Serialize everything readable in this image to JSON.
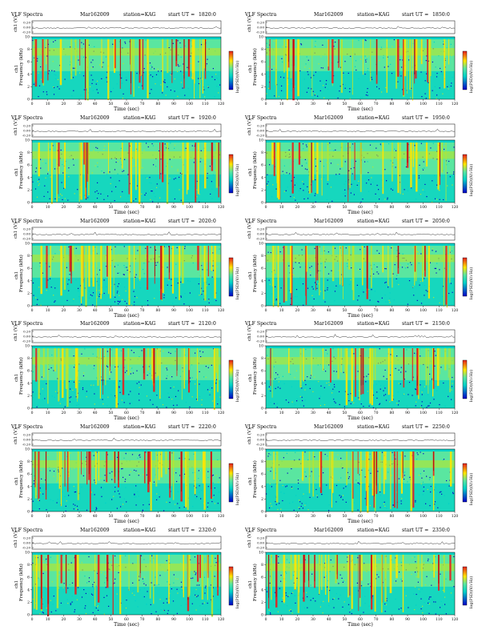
{
  "panel_header": {
    "title": "VLF Spectra",
    "date": "Mar162009",
    "station": "station=KAG",
    "start_prefix": "start UT ="
  },
  "labels": {
    "channel_axis": "ch1 (V)",
    "channel_name": "ch1",
    "frequency_axis": "Frequency (kHz)",
    "time_axis": "Time (sec)",
    "colorbar_axis": "log(PSD)(V/√Hz)"
  },
  "colors": {
    "low": "#0000c8",
    "mid": "#00d2c8",
    "background": "#5ae6a0",
    "high_green": "#b4e632",
    "yellow": "#ffe600",
    "red": "#e61e1e",
    "darkred": "#960000"
  },
  "chart_data": [
    {
      "type": "heatmap",
      "start_ut": "1820:0",
      "xlabel": "Time (sec)",
      "ylabel": "Frequency (kHz)",
      "xlim": [
        0,
        120
      ],
      "ylim": [
        0,
        10
      ],
      "x_ticks": [
        "0",
        "10",
        "20",
        "30",
        "40",
        "50",
        "60",
        "70",
        "80",
        "90",
        "100",
        "110",
        "120"
      ],
      "y_ticks": [
        "0",
        "2",
        "4",
        "6",
        "8",
        "10"
      ],
      "channel_ticks": [
        "0.20",
        "0.00",
        "-0.20"
      ]
    },
    {
      "type": "heatmap",
      "start_ut": "1850:0",
      "xlabel": "Time (sec)",
      "ylabel": "Frequency (kHz)",
      "xlim": [
        0,
        120
      ],
      "ylim": [
        0,
        10
      ],
      "x_ticks": [
        "0",
        "10",
        "20",
        "30",
        "40",
        "50",
        "60",
        "70",
        "80",
        "90",
        "100",
        "110",
        "120"
      ],
      "y_ticks": [
        "0",
        "2",
        "4",
        "6",
        "8",
        "10"
      ],
      "channel_ticks": [
        "0.20",
        "0.00",
        "-0.20"
      ]
    },
    {
      "type": "heatmap",
      "start_ut": "1920:0",
      "xlabel": "Time (sec)",
      "ylabel": "Frequency (kHz)",
      "xlim": [
        0,
        120
      ],
      "ylim": [
        0,
        10
      ],
      "x_ticks": [
        "0",
        "10",
        "20",
        "30",
        "40",
        "50",
        "60",
        "70",
        "80",
        "90",
        "100",
        "110",
        "120"
      ],
      "y_ticks": [
        "0",
        "2",
        "4",
        "6",
        "8",
        "10"
      ],
      "channel_ticks": [
        "0.20",
        "0.00",
        "-0.20"
      ]
    },
    {
      "type": "heatmap",
      "start_ut": "1950:0",
      "xlabel": "Time (sec)",
      "ylabel": "Frequency (kHz)",
      "xlim": [
        0,
        120
      ],
      "ylim": [
        0,
        10
      ],
      "x_ticks": [
        "0",
        "10",
        "20",
        "30",
        "40",
        "50",
        "60",
        "70",
        "80",
        "90",
        "100",
        "110",
        "120"
      ],
      "y_ticks": [
        "0",
        "2",
        "4",
        "6",
        "8",
        "10"
      ],
      "channel_ticks": [
        "0.20",
        "0.00",
        "-0.20"
      ]
    },
    {
      "type": "heatmap",
      "start_ut": "2020:0",
      "xlabel": "Time (sec)",
      "ylabel": "Frequency (kHz)",
      "xlim": [
        0,
        120
      ],
      "ylim": [
        0,
        10
      ],
      "x_ticks": [
        "0",
        "10",
        "20",
        "30",
        "40",
        "50",
        "60",
        "70",
        "80",
        "90",
        "100",
        "110",
        "120"
      ],
      "y_ticks": [
        "0",
        "2",
        "4",
        "6",
        "8",
        "10"
      ],
      "channel_ticks": [
        "0.20",
        "0.00",
        "-0.20"
      ]
    },
    {
      "type": "heatmap",
      "start_ut": "2050:0",
      "xlabel": "Time (sec)",
      "ylabel": "Frequency (kHz)",
      "xlim": [
        0,
        120
      ],
      "ylim": [
        0,
        10
      ],
      "x_ticks": [
        "0",
        "10",
        "20",
        "30",
        "40",
        "50",
        "60",
        "70",
        "80",
        "90",
        "100",
        "110",
        "120"
      ],
      "y_ticks": [
        "0",
        "2",
        "4",
        "6",
        "8",
        "10"
      ],
      "channel_ticks": [
        "0.20",
        "0.00",
        "-0.20"
      ]
    },
    {
      "type": "heatmap",
      "start_ut": "2120:0",
      "xlabel": "Time (sec)",
      "ylabel": "Frequency (kHz)",
      "xlim": [
        0,
        120
      ],
      "ylim": [
        0,
        10
      ],
      "x_ticks": [
        "0",
        "10",
        "20",
        "30",
        "40",
        "50",
        "60",
        "70",
        "80",
        "90",
        "100",
        "110",
        "120"
      ],
      "y_ticks": [
        "0",
        "2",
        "4",
        "6",
        "8",
        "10"
      ],
      "channel_ticks": [
        "0.20",
        "0.00",
        "-0.20"
      ]
    },
    {
      "type": "heatmap",
      "start_ut": "2150:0",
      "xlabel": "Time (sec)",
      "ylabel": "Frequency (kHz)",
      "xlim": [
        0,
        120
      ],
      "ylim": [
        0,
        10
      ],
      "x_ticks": [
        "0",
        "10",
        "20",
        "30",
        "40",
        "50",
        "60",
        "70",
        "80",
        "90",
        "100",
        "110",
        "120"
      ],
      "y_ticks": [
        "0",
        "2",
        "4",
        "6",
        "8",
        "10"
      ],
      "channel_ticks": [
        "0.20",
        "0.00",
        "-0.20"
      ]
    },
    {
      "type": "heatmap",
      "start_ut": "2220:0",
      "xlabel": "Time (sec)",
      "ylabel": "Frequency (kHz)",
      "xlim": [
        0,
        120
      ],
      "ylim": [
        0,
        10
      ],
      "x_ticks": [
        "0",
        "10",
        "20",
        "30",
        "40",
        "50",
        "60",
        "70",
        "80",
        "90",
        "100",
        "110",
        "120"
      ],
      "y_ticks": [
        "0",
        "2",
        "4",
        "6",
        "8",
        "10"
      ],
      "channel_ticks": [
        "0.20",
        "0.00",
        "-0.20"
      ]
    },
    {
      "type": "heatmap",
      "start_ut": "2250:0",
      "xlabel": "Time (sec)",
      "ylabel": "Frequency (kHz)",
      "xlim": [
        0,
        120
      ],
      "ylim": [
        0,
        10
      ],
      "x_ticks": [
        "0",
        "10",
        "20",
        "30",
        "40",
        "50",
        "60",
        "70",
        "80",
        "90",
        "100",
        "110",
        "120"
      ],
      "y_ticks": [
        "0",
        "2",
        "4",
        "6",
        "8",
        "10"
      ],
      "channel_ticks": [
        "0.20",
        "0.00",
        "-0.20"
      ]
    },
    {
      "type": "heatmap",
      "start_ut": "2320:0",
      "xlabel": "Time (sec)",
      "ylabel": "Frequency (kHz)",
      "xlim": [
        0,
        120
      ],
      "ylim": [
        0,
        10
      ],
      "x_ticks": [
        "0",
        "10",
        "20",
        "30",
        "40",
        "50",
        "60",
        "70",
        "80",
        "90",
        "100",
        "110",
        "120"
      ],
      "y_ticks": [
        "0",
        "2",
        "4",
        "6",
        "8",
        "10"
      ],
      "channel_ticks": [
        "0.20",
        "0.00",
        "-0.20"
      ]
    },
    {
      "type": "heatmap",
      "start_ut": "2350:0",
      "xlabel": "Time (sec)",
      "ylabel": "Frequency (kHz)",
      "xlim": [
        0,
        120
      ],
      "ylim": [
        0,
        10
      ],
      "x_ticks": [
        "0",
        "10",
        "20",
        "30",
        "40",
        "50",
        "60",
        "70",
        "80",
        "90",
        "100",
        "110",
        "120"
      ],
      "y_ticks": [
        "0",
        "2",
        "4",
        "6",
        "8",
        "10"
      ],
      "channel_ticks": [
        "0.20",
        "0.00",
        "-0.20"
      ]
    }
  ]
}
